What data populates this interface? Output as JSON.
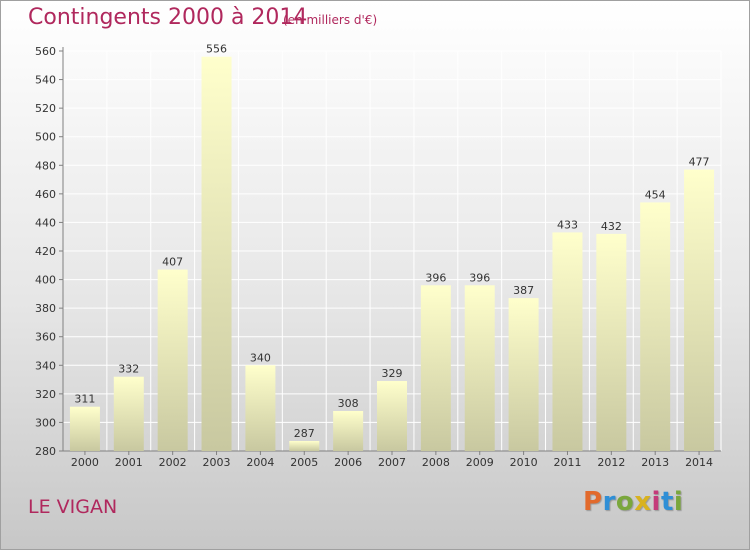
{
  "header": {
    "title": "Contingents 2000 à 2014",
    "unit": "(en milliers d'€)"
  },
  "footer": {
    "commune": "LE VIGAN",
    "logo": "Proxiti"
  },
  "colors": {
    "title": "#b0285d",
    "bar_light": "#ffffcc",
    "bar_dark": "#c8c8a0"
  },
  "chart_data": {
    "type": "bar",
    "categories": [
      "2000",
      "2001",
      "2002",
      "2003",
      "2004",
      "2005",
      "2006",
      "2007",
      "2008",
      "2009",
      "2010",
      "2011",
      "2012",
      "2013",
      "2014"
    ],
    "values": [
      311,
      332,
      407,
      556,
      340,
      287,
      308,
      329,
      396,
      396,
      387,
      433,
      432,
      454,
      477
    ],
    "title": "Contingents 2000 à 2014",
    "ylim": [
      280,
      560
    ],
    "yticks": [
      280,
      300,
      320,
      340,
      360,
      380,
      400,
      420,
      440,
      460,
      480,
      500,
      520,
      540,
      560
    ],
    "grid": true
  }
}
